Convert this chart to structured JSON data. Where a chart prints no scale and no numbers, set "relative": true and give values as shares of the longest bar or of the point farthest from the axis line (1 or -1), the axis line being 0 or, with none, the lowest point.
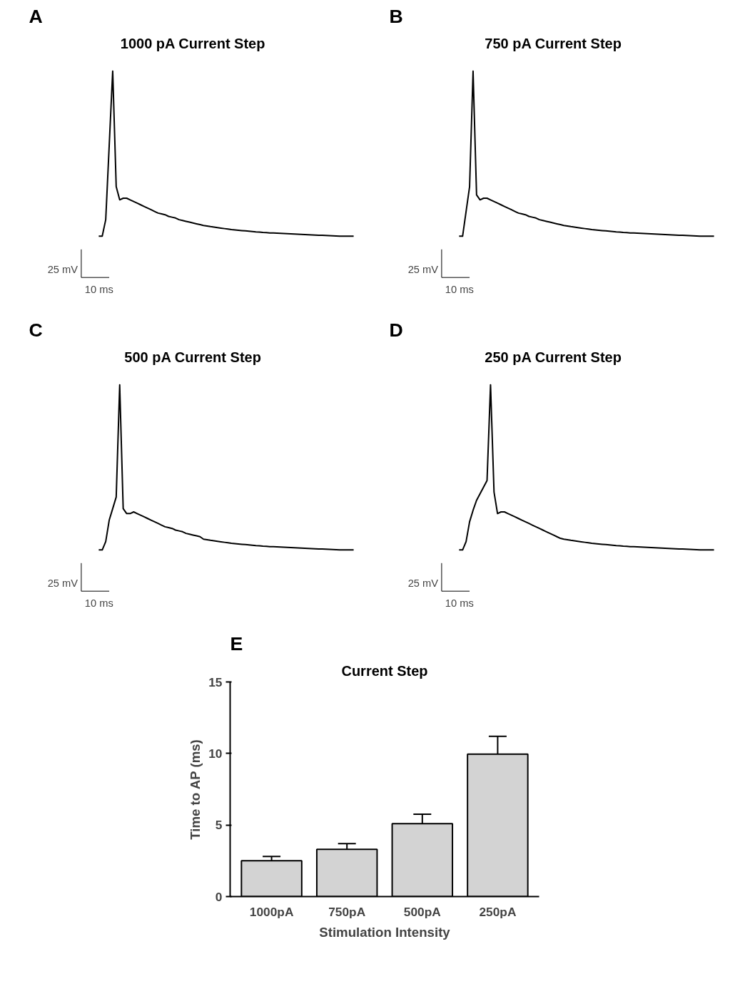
{
  "chart_data": [
    {
      "type": "line",
      "title": "1000 pA Current Step",
      "relative": true,
      "color": "#000000",
      "annotations": [
        "A",
        "25 mV",
        "10 ms"
      ],
      "categories": [
        null,
        null,
        null,
        null,
        null,
        null,
        null,
        null,
        null,
        null,
        null,
        null,
        null,
        null,
        null,
        null,
        null,
        null,
        null,
        null,
        null,
        null,
        null,
        null,
        null,
        null,
        null,
        null,
        null,
        null,
        null,
        null,
        null,
        null,
        null,
        null,
        null,
        null,
        null,
        null,
        null,
        null,
        null,
        null,
        null,
        null,
        null,
        null,
        null,
        null,
        null,
        null,
        null,
        null,
        null,
        null,
        null,
        null,
        null,
        null,
        null,
        null,
        null,
        null,
        null,
        null,
        null,
        null,
        null,
        null,
        null,
        null,
        null,
        null
      ],
      "values": [
        0,
        0,
        0.1,
        0.55,
        1,
        0.3,
        0.22,
        0.23,
        0.23,
        0.22,
        0.21,
        0.2,
        0.19,
        0.18,
        0.17,
        0.16,
        0.15,
        0.14,
        0.135,
        0.13,
        0.12,
        0.115,
        0.11,
        0.1,
        0.095,
        0.09,
        0.085,
        0.08,
        0.075,
        0.07,
        0.065,
        0.062,
        0.058,
        0.055,
        0.052,
        0.049,
        0.046,
        0.043,
        0.04,
        0.038,
        0.036,
        0.034,
        0.032,
        0.03,
        0.028,
        0.026,
        0.025,
        0.023,
        0.022,
        0.02,
        0.019,
        0.018,
        0.017,
        0.016,
        0.015,
        0.014,
        0.013,
        0.012,
        0.011,
        0.01,
        0.009,
        0.008,
        0.007,
        0.006,
        0.005,
        0.004,
        0.003,
        0.002,
        0.001,
        0,
        0,
        0,
        0,
        0
      ]
    },
    {
      "type": "line",
      "title": "750 pA Current Step",
      "relative": true,
      "color": "#000000",
      "annotations": [
        "B",
        "25 mV",
        "10 ms"
      ],
      "categories": [
        null,
        null,
        null,
        null,
        null,
        null,
        null,
        null,
        null,
        null,
        null,
        null,
        null,
        null,
        null,
        null,
        null,
        null,
        null,
        null,
        null,
        null,
        null,
        null,
        null,
        null,
        null,
        null,
        null,
        null,
        null,
        null,
        null,
        null,
        null,
        null,
        null,
        null,
        null,
        null,
        null,
        null,
        null,
        null,
        null,
        null,
        null,
        null,
        null,
        null,
        null,
        null,
        null,
        null,
        null,
        null,
        null,
        null,
        null,
        null,
        null,
        null,
        null,
        null,
        null,
        null,
        null,
        null,
        null,
        null,
        null,
        null,
        null,
        null
      ],
      "values": [
        0,
        0,
        0.15,
        0.3,
        1,
        0.25,
        0.22,
        0.23,
        0.23,
        0.22,
        0.21,
        0.2,
        0.19,
        0.18,
        0.17,
        0.16,
        0.15,
        0.14,
        0.135,
        0.13,
        0.12,
        0.115,
        0.11,
        0.1,
        0.095,
        0.09,
        0.085,
        0.08,
        0.075,
        0.07,
        0.065,
        0.062,
        0.058,
        0.055,
        0.052,
        0.049,
        0.046,
        0.043,
        0.04,
        0.038,
        0.036,
        0.034,
        0.032,
        0.03,
        0.028,
        0.026,
        0.025,
        0.023,
        0.022,
        0.02,
        0.019,
        0.018,
        0.017,
        0.016,
        0.015,
        0.014,
        0.013,
        0.012,
        0.011,
        0.01,
        0.009,
        0.008,
        0.007,
        0.006,
        0.005,
        0.004,
        0.003,
        0.002,
        0.001,
        0,
        0,
        0,
        0,
        0
      ]
    },
    {
      "type": "line",
      "title": "500 pA Current Step",
      "relative": true,
      "color": "#000000",
      "annotations": [
        "C",
        "25 mV",
        "10 ms"
      ],
      "categories": [
        null,
        null,
        null,
        null,
        null,
        null,
        null,
        null,
        null,
        null,
        null,
        null,
        null,
        null,
        null,
        null,
        null,
        null,
        null,
        null,
        null,
        null,
        null,
        null,
        null,
        null,
        null,
        null,
        null,
        null,
        null,
        null,
        null,
        null,
        null,
        null,
        null,
        null,
        null,
        null,
        null,
        null,
        null,
        null,
        null,
        null,
        null,
        null,
        null,
        null,
        null,
        null,
        null,
        null,
        null,
        null,
        null,
        null,
        null,
        null,
        null,
        null,
        null,
        null,
        null,
        null,
        null,
        null,
        null,
        null,
        null,
        null,
        null,
        null
      ],
      "values": [
        0,
        0,
        0.05,
        0.18,
        0.25,
        0.32,
        1,
        0.25,
        0.22,
        0.22,
        0.23,
        0.22,
        0.21,
        0.2,
        0.19,
        0.18,
        0.17,
        0.16,
        0.15,
        0.14,
        0.135,
        0.13,
        0.12,
        0.115,
        0.11,
        0.1,
        0.095,
        0.09,
        0.085,
        0.08,
        0.065,
        0.062,
        0.058,
        0.055,
        0.052,
        0.049,
        0.046,
        0.043,
        0.04,
        0.038,
        0.036,
        0.034,
        0.032,
        0.03,
        0.028,
        0.026,
        0.025,
        0.023,
        0.022,
        0.02,
        0.019,
        0.018,
        0.017,
        0.016,
        0.015,
        0.014,
        0.013,
        0.012,
        0.011,
        0.01,
        0.009,
        0.008,
        0.007,
        0.006,
        0.005,
        0.004,
        0.003,
        0.002,
        0.001,
        0,
        0,
        0,
        0,
        0
      ]
    },
    {
      "type": "line",
      "title": "250 pA Current Step",
      "relative": true,
      "color": "#000000",
      "annotations": [
        "D",
        "25 mV",
        "10 ms"
      ],
      "categories": [
        null,
        null,
        null,
        null,
        null,
        null,
        null,
        null,
        null,
        null,
        null,
        null,
        null,
        null,
        null,
        null,
        null,
        null,
        null,
        null,
        null,
        null,
        null,
        null,
        null,
        null,
        null,
        null,
        null,
        null,
        null,
        null,
        null,
        null,
        null,
        null,
        null,
        null,
        null,
        null,
        null,
        null,
        null,
        null,
        null,
        null,
        null,
        null,
        null,
        null,
        null,
        null,
        null,
        null,
        null,
        null,
        null,
        null,
        null,
        null,
        null,
        null,
        null,
        null,
        null,
        null,
        null,
        null,
        null,
        null,
        null,
        null,
        null,
        null
      ],
      "values": [
        0,
        0,
        0.05,
        0.17,
        0.24,
        0.3,
        0.34,
        0.38,
        0.42,
        1,
        0.35,
        0.22,
        0.23,
        0.23,
        0.22,
        0.21,
        0.2,
        0.19,
        0.18,
        0.17,
        0.16,
        0.15,
        0.14,
        0.13,
        0.12,
        0.11,
        0.1,
        0.09,
        0.08,
        0.07,
        0.065,
        0.062,
        0.058,
        0.055,
        0.052,
        0.049,
        0.046,
        0.043,
        0.04,
        0.038,
        0.036,
        0.034,
        0.032,
        0.03,
        0.028,
        0.026,
        0.025,
        0.023,
        0.022,
        0.02,
        0.019,
        0.018,
        0.017,
        0.016,
        0.015,
        0.014,
        0.013,
        0.012,
        0.011,
        0.01,
        0.009,
        0.008,
        0.007,
        0.006,
        0.005,
        0.004,
        0.003,
        0.002,
        0.001,
        0,
        0,
        0,
        0,
        0
      ]
    },
    {
      "type": "bar",
      "title": "Current Step",
      "xlabel": "Stimulation Intensity",
      "ylabel": "Time to AP (ms)",
      "annotations": [
        "E"
      ],
      "categories": [
        "1000pA",
        "750pA",
        "500pA",
        "250pA"
      ],
      "values": [
        2.5,
        3.3,
        5.1,
        9.95
      ],
      "errors": [
        0.3,
        0.4,
        0.65,
        1.25
      ],
      "color": "#d3d3d3",
      "ylim": [
        0,
        15
      ],
      "yticks": [
        0,
        5,
        10,
        15
      ]
    }
  ]
}
